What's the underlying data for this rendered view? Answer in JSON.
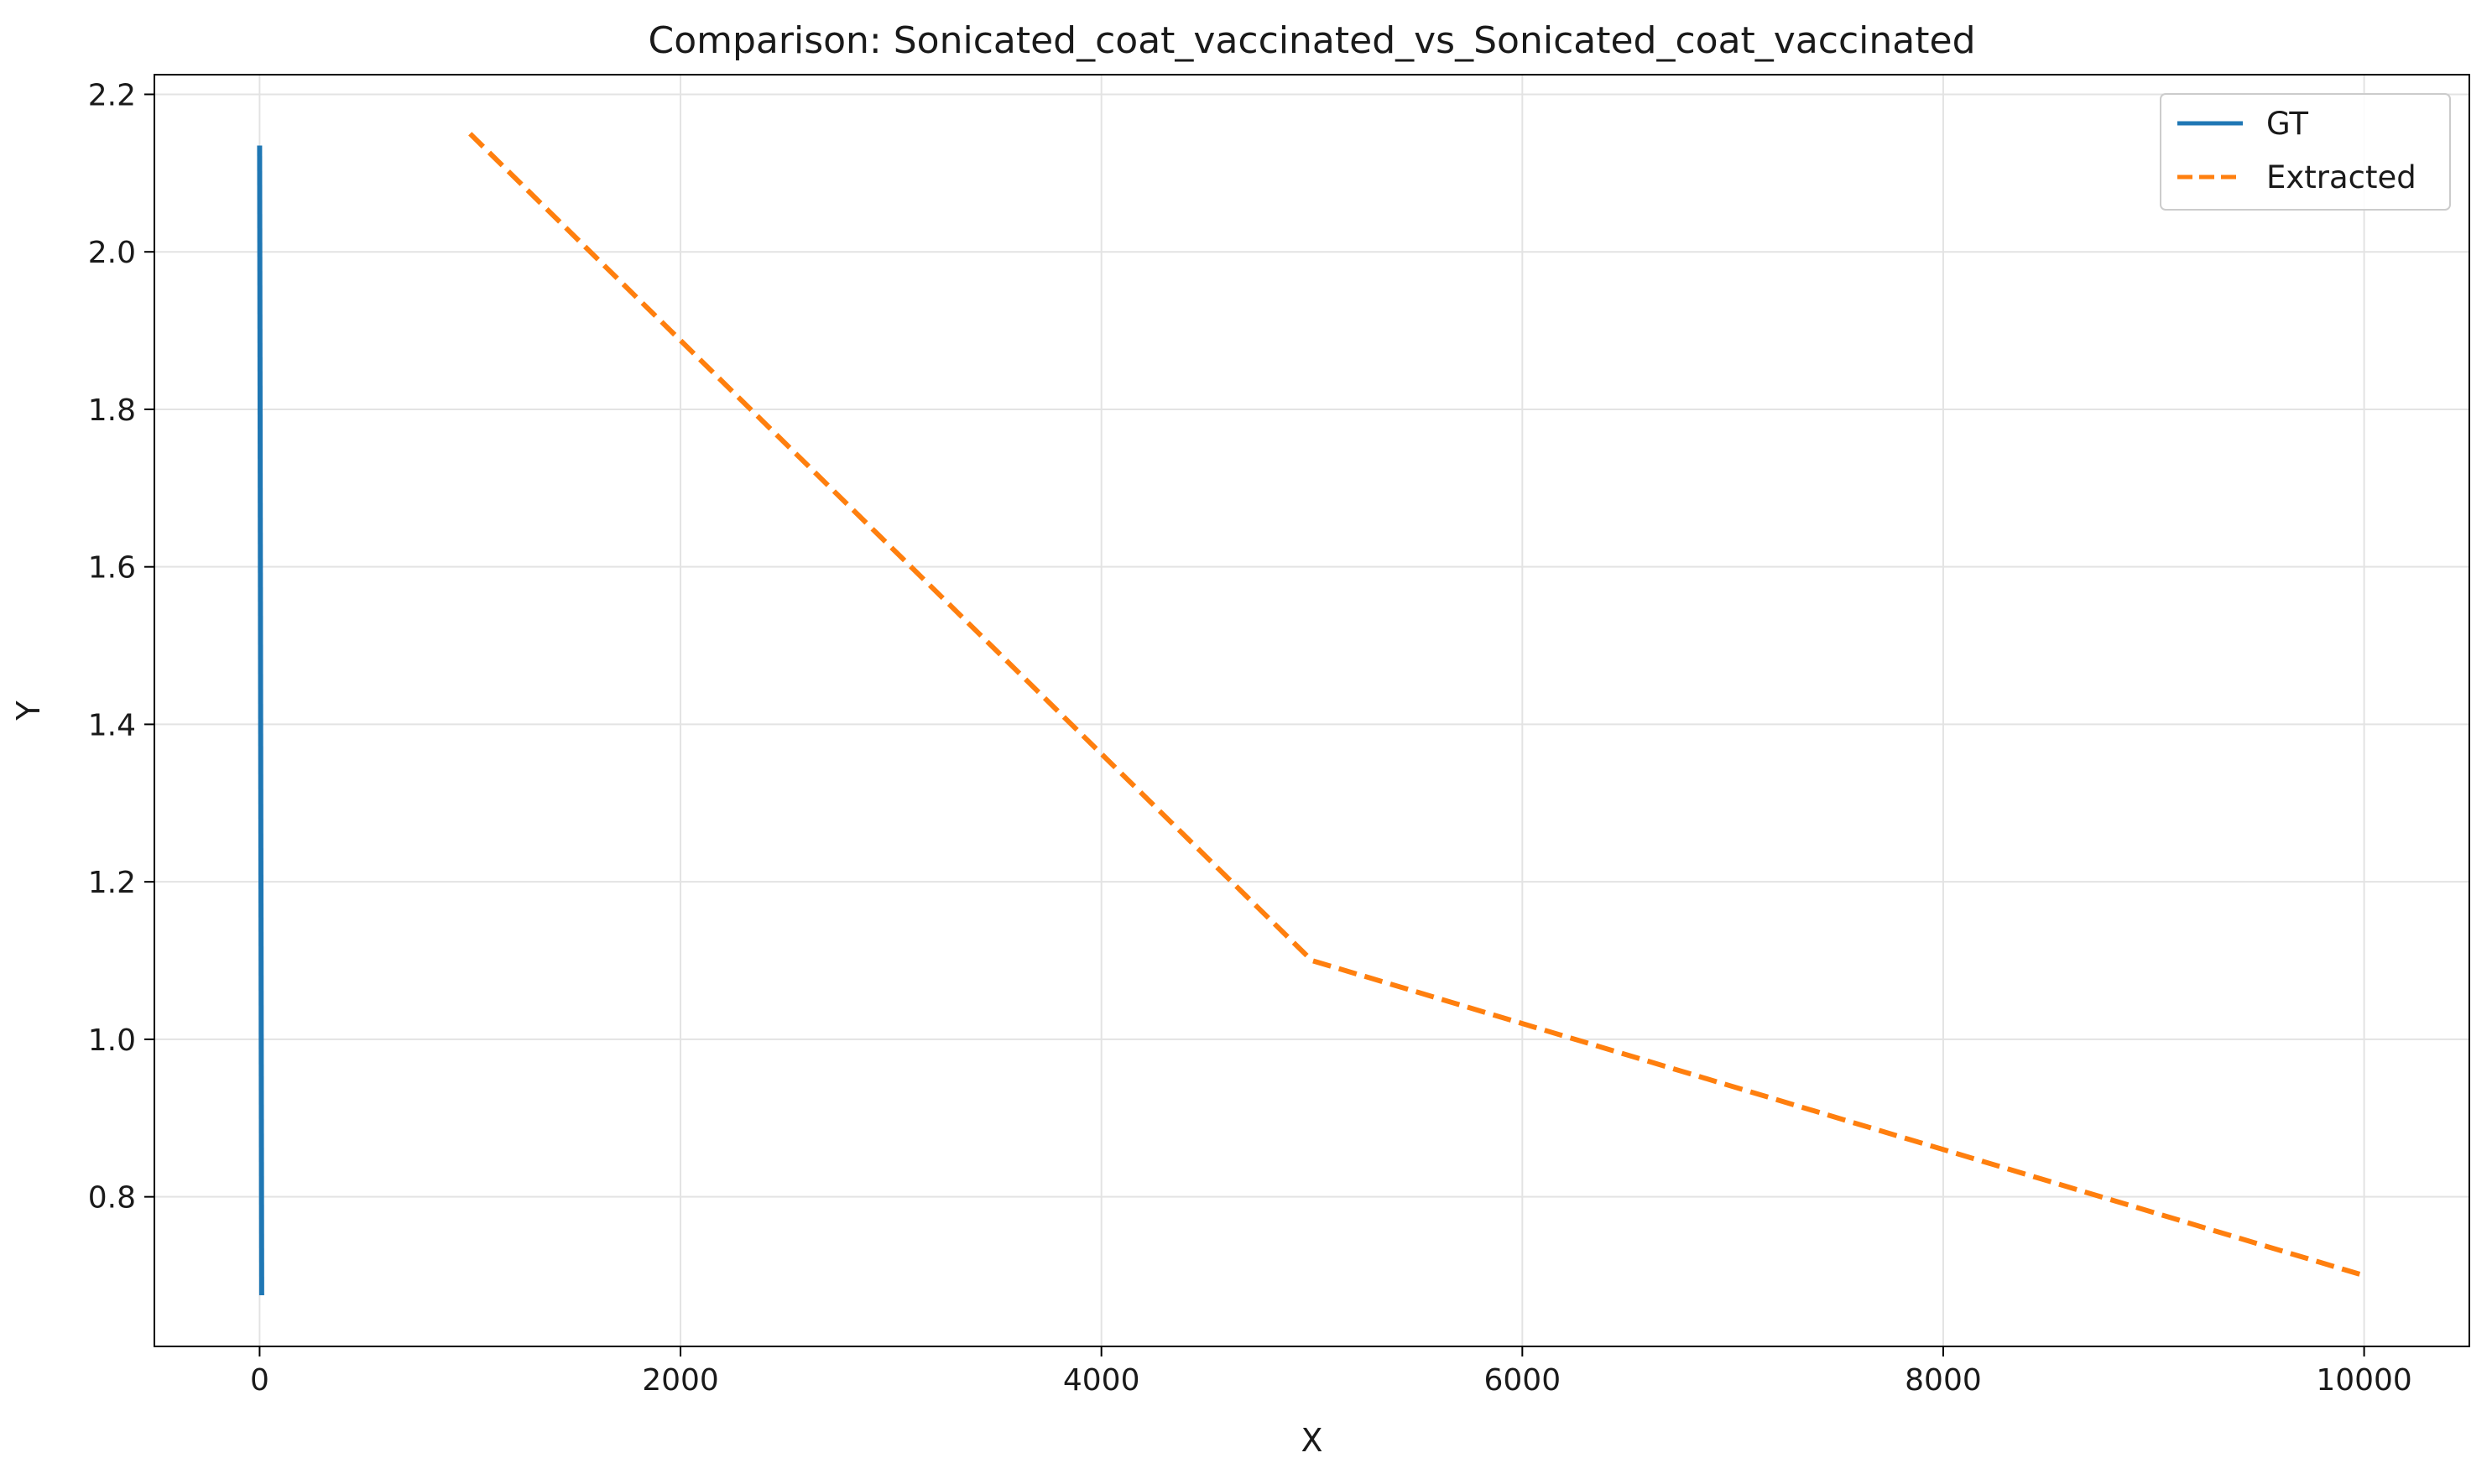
{
  "chart_data": {
    "type": "line",
    "title": "Comparison: Sonicated_coat_vaccinated_vs_Sonicated_coat_vaccinated",
    "xlabel": "X",
    "ylabel": "Y",
    "xlim": [
      -500,
      10500
    ],
    "ylim": [
      0.61,
      2.225
    ],
    "xticks": [
      0,
      2000,
      4000,
      6000,
      8000,
      10000
    ],
    "yticks": [
      0.8,
      1.0,
      1.2,
      1.4,
      1.6,
      1.8,
      2.0,
      2.2
    ],
    "xtick_labels": [
      "0",
      "2000",
      "4000",
      "6000",
      "8000",
      "10000"
    ],
    "ytick_labels": [
      "0.8",
      "1.0",
      "1.2",
      "1.4",
      "1.6",
      "1.8",
      "2.0",
      "2.2"
    ],
    "grid": true,
    "legend_position": "top-right",
    "series": [
      {
        "name": "GT",
        "color": "#1f77b4",
        "style": "solid",
        "x": [
          0,
          10
        ],
        "y": [
          2.135,
          0.675
        ]
      },
      {
        "name": "Extracted",
        "color": "#ff7f0e",
        "style": "dashed",
        "x": [
          1000,
          5000,
          10000
        ],
        "y": [
          2.15,
          1.1,
          0.7
        ]
      }
    ]
  }
}
